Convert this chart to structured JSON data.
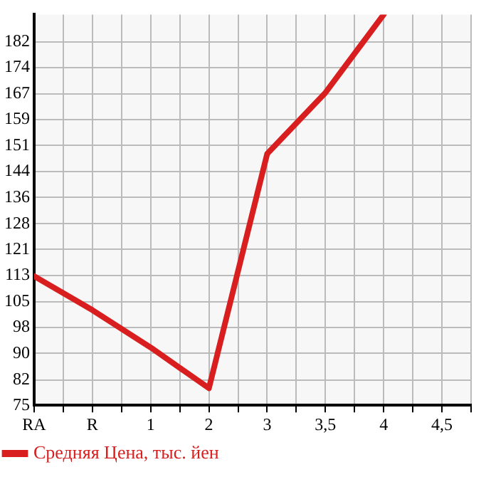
{
  "chart_data": {
    "type": "line",
    "categories": [
      "RA",
      "R",
      "1",
      "2",
      "3",
      "3,5",
      "4",
      "4,5"
    ],
    "series": [
      {
        "name": "Средняя Цена, тыс. йен",
        "color": "#d81e1e",
        "values": [
          113,
          103,
          92,
          80,
          149,
          167,
          190,
          null
        ]
      }
    ],
    "ylim": [
      75,
      190
    ],
    "yticks": [
      75,
      {
        "value": 82.4,
        "label": "82"
      },
      {
        "value": 90.29,
        "label": "90"
      },
      {
        "value": 97.93,
        "label": "98"
      },
      {
        "value": 105.4,
        "label": "105"
      },
      {
        "value": 113.21,
        "label": "113"
      },
      {
        "value": 120.86,
        "label": "121"
      },
      {
        "value": 128.4,
        "label": "128"
      },
      {
        "value": 136.14,
        "label": "136"
      },
      {
        "value": 143.79,
        "label": "144"
      },
      {
        "value": 151.43,
        "label": "151"
      },
      {
        "value": 159.07,
        "label": "159"
      },
      {
        "value": 166.71,
        "label": "167"
      },
      {
        "value": 174.36,
        "label": "174"
      },
      {
        "value": 182,
        "label": "182"
      }
    ],
    "grid": true,
    "legend": "bottom left",
    "marker": "none",
    "line_style": "solid"
  }
}
